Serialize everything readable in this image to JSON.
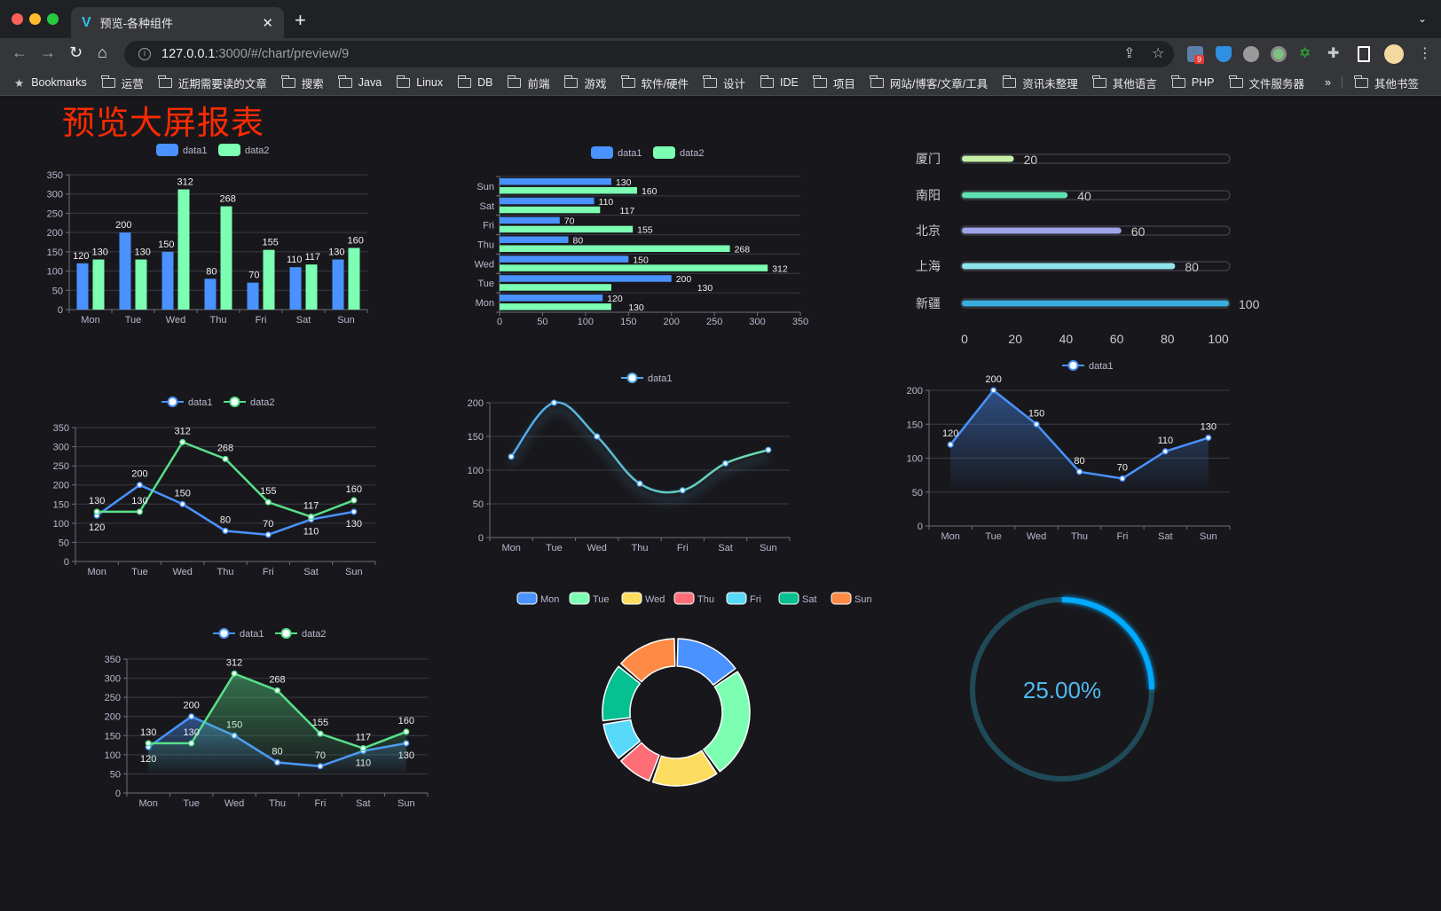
{
  "browser": {
    "tab_title": "预览-各种组件",
    "url_host": "127.0.0.1",
    "url_rest": ":3000/#/chart/preview/9",
    "extension_badge": "9",
    "bookmarks": [
      "Bookmarks",
      "运营",
      "近期需要读的文章",
      "搜索",
      "Java",
      "Linux",
      "DB",
      "前端",
      "游戏",
      "软件/硬件",
      "设计",
      "IDE",
      "项目",
      "网站/博客/文章/工具",
      "资讯未整理",
      "其他语言",
      "PHP",
      "文件服务器"
    ],
    "more": "»",
    "other_bookmarks": "其他书签"
  },
  "page": {
    "title": "预览大屏报表"
  },
  "chart_data": [
    {
      "type": "bar",
      "categories": [
        "Mon",
        "Tue",
        "Wed",
        "Thu",
        "Fri",
        "Sat",
        "Sun"
      ],
      "series": [
        {
          "name": "data1",
          "values": [
            120,
            200,
            150,
            80,
            70,
            110,
            130
          ],
          "color": "#4992ff"
        },
        {
          "name": "data2",
          "values": [
            130,
            130,
            312,
            268,
            155,
            117,
            160
          ],
          "color": "#7cffb2"
        }
      ],
      "ylim": [
        0,
        350
      ],
      "yticks": [
        0,
        50,
        100,
        150,
        200,
        250,
        300,
        350
      ],
      "grid": true,
      "legend": "top-center"
    },
    {
      "type": "bar",
      "orientation": "horizontal",
      "categories": [
        "Mon",
        "Tue",
        "Wed",
        "Thu",
        "Fri",
        "Sat",
        "Sun"
      ],
      "series": [
        {
          "name": "data1",
          "values": [
            120,
            200,
            150,
            80,
            70,
            110,
            130
          ],
          "color": "#4992ff"
        },
        {
          "name": "data2",
          "values": [
            130,
            130,
            312,
            268,
            155,
            117,
            160
          ],
          "color": "#7cffb2"
        }
      ],
      "xlim": [
        0,
        350
      ],
      "xticks": [
        0,
        50,
        100,
        150,
        200,
        250,
        300,
        350
      ],
      "grid": true,
      "legend": "top-center"
    },
    {
      "type": "bar",
      "orientation": "horizontal-progress",
      "categories": [
        "厦门",
        "南阳",
        "北京",
        "上海",
        "新疆"
      ],
      "values": [
        20,
        40,
        60,
        80,
        100
      ],
      "colors": [
        "#c6f0a8",
        "#5fe0b0",
        "#9fa4e8",
        "#8fe3ec",
        "#3aaee0"
      ],
      "xlim": [
        0,
        100
      ],
      "xticks": [
        0,
        20,
        40,
        60,
        80,
        100
      ]
    },
    {
      "type": "line",
      "categories": [
        "Mon",
        "Tue",
        "Wed",
        "Thu",
        "Fri",
        "Sat",
        "Sun"
      ],
      "series": [
        {
          "name": "data1",
          "values": [
            120,
            200,
            150,
            80,
            70,
            110,
            130
          ],
          "color": "#4992ff"
        },
        {
          "name": "data2",
          "values": [
            130,
            130,
            312,
            268,
            155,
            117,
            160
          ],
          "color": "#58e08a"
        }
      ],
      "ylim": [
        0,
        350
      ],
      "yticks": [
        0,
        50,
        100,
        150,
        200,
        250,
        300,
        350
      ],
      "grid": true,
      "legend": "top-center"
    },
    {
      "type": "line",
      "smooth": true,
      "categories": [
        "Mon",
        "Tue",
        "Wed",
        "Thu",
        "Fri",
        "Sat",
        "Sun"
      ],
      "series": [
        {
          "name": "data1",
          "values": [
            120,
            200,
            150,
            80,
            70,
            110,
            130
          ],
          "color": "#4fa8f0",
          "color_end": "#6ee0a8"
        }
      ],
      "ylim": [
        0,
        200
      ],
      "yticks": [
        0,
        50,
        100,
        150,
        200
      ],
      "grid": true,
      "legend": "top-center"
    },
    {
      "type": "area",
      "categories": [
        "Mon",
        "Tue",
        "Wed",
        "Thu",
        "Fri",
        "Sat",
        "Sun"
      ],
      "series": [
        {
          "name": "data1",
          "values": [
            120,
            200,
            150,
            80,
            70,
            110,
            130
          ],
          "color": "#4992ff"
        }
      ],
      "ylim": [
        0,
        200
      ],
      "yticks": [
        0,
        50,
        100,
        150,
        200
      ],
      "grid": true,
      "legend": "top-center"
    },
    {
      "type": "area",
      "categories": [
        "Mon",
        "Tue",
        "Wed",
        "Thu",
        "Fri",
        "Sat",
        "Sun"
      ],
      "series": [
        {
          "name": "data1",
          "values": [
            120,
            200,
            150,
            80,
            70,
            110,
            130
          ],
          "color": "#4992ff"
        },
        {
          "name": "data2",
          "values": [
            130,
            130,
            312,
            268,
            155,
            117,
            160
          ],
          "color": "#58e08a"
        }
      ],
      "ylim": [
        0,
        350
      ],
      "yticks": [
        0,
        50,
        100,
        150,
        200,
        250,
        300,
        350
      ],
      "grid": true,
      "legend": "top-center"
    },
    {
      "type": "pie",
      "donut": true,
      "categories": [
        "Mon",
        "Tue",
        "Wed",
        "Thu",
        "Fri",
        "Sat",
        "Sun"
      ],
      "values": [
        55,
        90,
        55,
        30,
        32,
        48,
        50
      ],
      "colors": [
        "#4992ff",
        "#7cffb2",
        "#fddd60",
        "#ff6e76",
        "#58d9f9",
        "#05c091",
        "#ff8a45"
      ],
      "legend": "top-center"
    },
    {
      "type": "gauge",
      "value": 25,
      "label": "25.00%",
      "color": "#00aaff",
      "track_color": "#1f4a58"
    }
  ]
}
